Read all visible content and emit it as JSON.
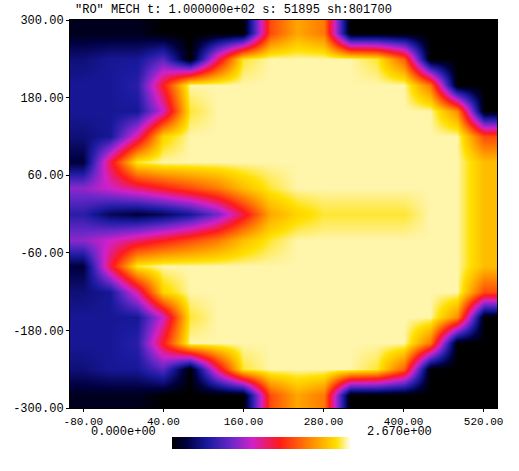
{
  "chart_data": {
    "type": "heatmap",
    "title": "\"RO\" MECH t: 1.000000e+02 s: 51895 sh:801700",
    "x": [
      -80,
      -40,
      0,
      40,
      80,
      120,
      160,
      200,
      240,
      280,
      320,
      360,
      400,
      440,
      480,
      520
    ],
    "y": [
      -280,
      -240,
      -200,
      -160,
      -120,
      -80,
      -40,
      0,
      40,
      80,
      120,
      160,
      200,
      240,
      280
    ],
    "z": [
      [
        0.1,
        0.1,
        0.1,
        0,
        0,
        0,
        0,
        1.8,
        2.2,
        2.0,
        0,
        0,
        0,
        0,
        0,
        0
      ],
      [
        0.4,
        0.5,
        0.5,
        0.8,
        0,
        1.4,
        2.5,
        2.6,
        2.6,
        2.6,
        2.6,
        2.5,
        1.9,
        0,
        0,
        0
      ],
      [
        0.5,
        0.5,
        0.6,
        1.6,
        2.6,
        2.6,
        2.6,
        2.6,
        2.6,
        2.6,
        2.6,
        2.6,
        2.6,
        2.0,
        0,
        0
      ],
      [
        0.5,
        0.5,
        0.5,
        1.2,
        2.5,
        2.6,
        2.6,
        2.6,
        2.6,
        2.6,
        2.6,
        2.6,
        2.6,
        2.6,
        2.1,
        0
      ],
      [
        0.4,
        0.5,
        1.3,
        2.4,
        2.6,
        2.6,
        2.6,
        2.6,
        2.6,
        2.6,
        2.6,
        2.6,
        2.6,
        2.6,
        2.6,
        1.8
      ],
      [
        0.2,
        1.5,
        2.5,
        2.6,
        2.6,
        2.6,
        2.6,
        2.6,
        2.6,
        2.6,
        2.6,
        2.6,
        2.6,
        2.6,
        2.6,
        2.3
      ],
      [
        1.0,
        1.2,
        1.4,
        1.6,
        1.8,
        2.0,
        2.3,
        2.5,
        2.6,
        2.6,
        2.6,
        2.6,
        2.6,
        2.6,
        2.6,
        2.3
      ],
      [
        0.6,
        0.3,
        0.2,
        0.3,
        0.5,
        0.9,
        1.5,
        2.2,
        2.4,
        2.5,
        2.5,
        2.5,
        2.5,
        2.6,
        2.6,
        2.3
      ],
      [
        1.0,
        1.2,
        1.4,
        1.6,
        1.8,
        2.0,
        2.3,
        2.5,
        2.6,
        2.6,
        2.6,
        2.6,
        2.6,
        2.6,
        2.6,
        2.3
      ],
      [
        0.2,
        1.5,
        2.5,
        2.6,
        2.6,
        2.6,
        2.6,
        2.6,
        2.6,
        2.6,
        2.6,
        2.6,
        2.6,
        2.6,
        2.6,
        2.3
      ],
      [
        0.4,
        0.5,
        1.3,
        2.4,
        2.6,
        2.6,
        2.6,
        2.6,
        2.6,
        2.6,
        2.6,
        2.6,
        2.6,
        2.6,
        2.6,
        1.8
      ],
      [
        0.5,
        0.5,
        0.5,
        1.2,
        2.5,
        2.6,
        2.6,
        2.6,
        2.6,
        2.6,
        2.6,
        2.6,
        2.6,
        2.6,
        2.1,
        0
      ],
      [
        0.5,
        0.5,
        0.6,
        1.6,
        2.6,
        2.6,
        2.6,
        2.6,
        2.6,
        2.6,
        2.6,
        2.6,
        2.6,
        2.0,
        0,
        0
      ],
      [
        0.4,
        0.5,
        0.5,
        0.8,
        0,
        1.4,
        2.5,
        2.6,
        2.6,
        2.6,
        2.6,
        2.5,
        1.9,
        0,
        0,
        0
      ],
      [
        0.1,
        0.1,
        0.1,
        0,
        0,
        0,
        0,
        1.8,
        2.2,
        2.0,
        0,
        0,
        0,
        0,
        0,
        0
      ]
    ],
    "xlim": [
      -100,
      540
    ],
    "ylim": [
      -300,
      300
    ],
    "xticks": [
      {
        "value": -80,
        "label": "-80.00"
      },
      {
        "value": 40,
        "label": "40.00"
      },
      {
        "value": 160,
        "label": "160.00"
      },
      {
        "value": 280,
        "label": "280.00"
      },
      {
        "value": 400,
        "label": "400.00"
      },
      {
        "value": 520,
        "label": "520.00"
      }
    ],
    "yticks": [
      {
        "value": 300,
        "label": "300.00"
      },
      {
        "value": 180,
        "label": "180.00"
      },
      {
        "value": 60,
        "label": "60.00"
      },
      {
        "value": -60,
        "label": "-60.00"
      },
      {
        "value": -180,
        "label": "-180.00"
      },
      {
        "value": -300,
        "label": "-300.00"
      }
    ],
    "colorbar": {
      "range": [
        0,
        2.67
      ],
      "ticks": [
        {
          "value": 0,
          "label": "0.000e+00"
        },
        {
          "value": 2.67,
          "label": "2.670e+00"
        }
      ]
    }
  }
}
